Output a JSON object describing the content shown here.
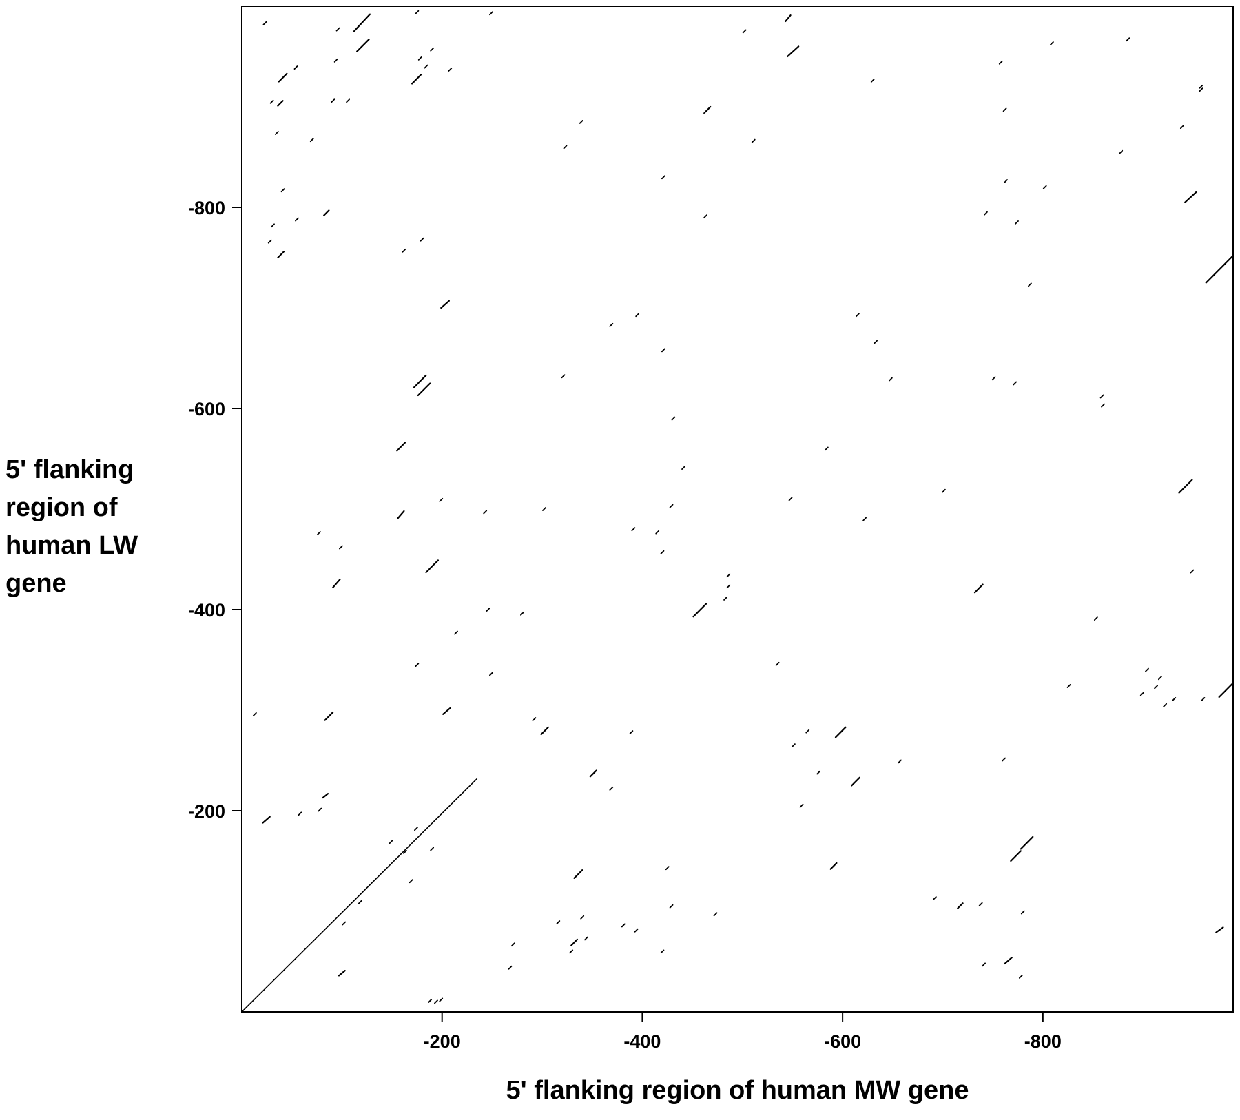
{
  "chart_data": {
    "type": "scatter",
    "title": "",
    "xlabel": "5' flanking region of human MW gene",
    "ylabel_lines": [
      "5' flanking",
      "region of",
      "human LW",
      "gene"
    ],
    "xlim": [
      0,
      -990
    ],
    "ylim": [
      0,
      -1000
    ],
    "x_ticks": [
      -200,
      -400,
      -600,
      -800
    ],
    "y_ticks": [
      -200,
      -400,
      -600,
      -800
    ],
    "x_tick_labels": [
      "-200",
      "-400",
      "-600",
      "-800"
    ],
    "y_tick_labels": [
      "-200",
      "-400",
      "-600",
      "-800"
    ],
    "grid": false,
    "main_diagonal": {
      "x": [
        0,
        -235
      ],
      "y": [
        0,
        -232
      ]
    },
    "segments": [
      {
        "x": [
          -112,
          -128
        ],
        "y": [
          -975,
          -992
        ]
      },
      {
        "x": [
          -115,
          -127
        ],
        "y": [
          -955,
          -967
        ]
      },
      {
        "x": [
          -543,
          -548
        ],
        "y": [
          -985,
          -991
        ]
      },
      {
        "x": [
          -545,
          -556
        ],
        "y": [
          -950,
          -960
        ]
      },
      {
        "x": [
          -170,
          -179
        ],
        "y": [
          -923,
          -932
        ]
      },
      {
        "x": [
          -37,
          -45
        ],
        "y": [
          -925,
          -933
        ]
      },
      {
        "x": [
          -36,
          -41
        ],
        "y": [
          -901,
          -906
        ]
      },
      {
        "x": [
          -463,
          -468
        ],
        "y": [
          -895,
          -900
        ]
      },
      {
        "x": [
          -942,
          -953
        ],
        "y": [
          -805,
          -815
        ]
      },
      {
        "x": [
          -36,
          -42
        ],
        "y": [
          -750,
          -756
        ]
      },
      {
        "x": [
          -82,
          -87
        ],
        "y": [
          -792,
          -797
        ]
      },
      {
        "x": [
          -199,
          -207
        ],
        "y": [
          -700,
          -707
        ]
      },
      {
        "x": [
          -963,
          -990
        ],
        "y": [
          -725,
          -752
        ]
      },
      {
        "x": [
          -172,
          -184
        ],
        "y": [
          -621,
          -633
        ]
      },
      {
        "x": [
          -176,
          -188
        ],
        "y": [
          -613,
          -625
        ]
      },
      {
        "x": [
          -155,
          -163
        ],
        "y": [
          -558,
          -566
        ]
      },
      {
        "x": [
          -156,
          -162
        ],
        "y": [
          -491,
          -498
        ]
      },
      {
        "x": [
          -184,
          -196
        ],
        "y": [
          -437,
          -449
        ]
      },
      {
        "x": [
          -936,
          -949
        ],
        "y": [
          -516,
          -529
        ]
      },
      {
        "x": [
          -732,
          -740
        ],
        "y": [
          -417,
          -425
        ]
      },
      {
        "x": [
          -451,
          -464
        ],
        "y": [
          -393,
          -406
        ]
      },
      {
        "x": [
          -91,
          -98
        ],
        "y": [
          -422,
          -430
        ]
      },
      {
        "x": [
          -83,
          -91
        ],
        "y": [
          -290,
          -298
        ]
      },
      {
        "x": [
          -201,
          -208
        ],
        "y": [
          -296,
          -302
        ]
      },
      {
        "x": [
          -593,
          -603
        ],
        "y": [
          -273,
          -283
        ]
      },
      {
        "x": [
          -299,
          -306
        ],
        "y": [
          -276,
          -283
        ]
      },
      {
        "x": [
          -348,
          -354
        ],
        "y": [
          -234,
          -240
        ]
      },
      {
        "x": [
          -609,
          -617
        ],
        "y": [
          -225,
          -233
        ]
      },
      {
        "x": [
          -81,
          -86
        ],
        "y": [
          -213,
          -217
        ]
      },
      {
        "x": [
          -21,
          -28
        ],
        "y": [
          -188,
          -194
        ]
      },
      {
        "x": [
          -768,
          -778
        ],
        "y": [
          -150,
          -160
        ]
      },
      {
        "x": [
          -778,
          -790
        ],
        "y": [
          -162,
          -174
        ]
      },
      {
        "x": [
          -588,
          -594
        ],
        "y": [
          -142,
          -148
        ]
      },
      {
        "x": [
          -332,
          -340
        ],
        "y": [
          -133,
          -141
        ]
      },
      {
        "x": [
          -715,
          -720
        ],
        "y": [
          -103,
          -108
        ]
      },
      {
        "x": [
          -329,
          -335
        ],
        "y": [
          -66,
          -72
        ]
      },
      {
        "x": [
          -973,
          -980
        ],
        "y": [
          -79,
          -84
        ]
      },
      {
        "x": [
          -976,
          -990
        ],
        "y": [
          -313,
          -327
        ]
      },
      {
        "x": [
          -762,
          -769
        ],
        "y": [
          -48,
          -54
        ]
      },
      {
        "x": [
          -97,
          -103
        ],
        "y": [
          -36,
          -41
        ]
      }
    ],
    "dots": [
      [
        -23,
        -983
      ],
      [
        -94,
        -946
      ],
      [
        -175,
        -994
      ],
      [
        -249,
        -993
      ],
      [
        -190,
        -957
      ],
      [
        -184,
        -940
      ],
      [
        -208,
        -937
      ],
      [
        -178,
        -948
      ],
      [
        -96,
        -977
      ],
      [
        -30,
        -905
      ],
      [
        -54,
        -939
      ],
      [
        -91,
        -906
      ],
      [
        -106,
        -906
      ],
      [
        -35,
        -874
      ],
      [
        -70,
        -867
      ],
      [
        -41,
        -817
      ],
      [
        -31,
        -782
      ],
      [
        -55,
        -788
      ],
      [
        -28,
        -766
      ],
      [
        -162,
        -757
      ],
      [
        -180,
        -768
      ],
      [
        -339,
        -885
      ],
      [
        -463,
        -895
      ],
      [
        -323,
        -860
      ],
      [
        -511,
        -866
      ],
      [
        -502,
        -975
      ],
      [
        -630,
        -926
      ],
      [
        -758,
        -944
      ],
      [
        -809,
        -963
      ],
      [
        -958,
        -920
      ],
      [
        -939,
        -880
      ],
      [
        -958,
        -917
      ],
      [
        -878,
        -855
      ],
      [
        -885,
        -967
      ],
      [
        -762,
        -897
      ],
      [
        -802,
        -820
      ],
      [
        -743,
        -794
      ],
      [
        -763,
        -826
      ],
      [
        -774,
        -785
      ],
      [
        -421,
        -830
      ],
      [
        -463,
        -791
      ],
      [
        -787,
        -723
      ],
      [
        -369,
        -683
      ],
      [
        -395,
        -693
      ],
      [
        -421,
        -658
      ],
      [
        -321,
        -632
      ],
      [
        -633,
        -666
      ],
      [
        -615,
        -693
      ],
      [
        -648,
        -629
      ],
      [
        -751,
        -630
      ],
      [
        -772,
        -625
      ],
      [
        -860,
        -603
      ],
      [
        -859,
        -612
      ],
      [
        -431,
        -590
      ],
      [
        -584,
        -560
      ],
      [
        -441,
        -541
      ],
      [
        -429,
        -503
      ],
      [
        -391,
        -480
      ],
      [
        -415,
        -477
      ],
      [
        -420,
        -457
      ],
      [
        -199,
        -509
      ],
      [
        -243,
        -497
      ],
      [
        -302,
        -500
      ],
      [
        -99,
        -462
      ],
      [
        -77,
        -476
      ],
      [
        -548,
        -510
      ],
      [
        -622,
        -490
      ],
      [
        -701,
        -518
      ],
      [
        -486,
        -434
      ],
      [
        -486,
        -423
      ],
      [
        -483,
        -411
      ],
      [
        -949,
        -438
      ],
      [
        -246,
        -400
      ],
      [
        -280,
        -396
      ],
      [
        -214,
        -377
      ],
      [
        -175,
        -345
      ],
      [
        -249,
        -336
      ],
      [
        -535,
        -346
      ],
      [
        -853,
        -391
      ],
      [
        -904,
        -340
      ],
      [
        -917,
        -332
      ],
      [
        -913,
        -323
      ],
      [
        -899,
        -316
      ],
      [
        -922,
        -305
      ],
      [
        -931,
        -311
      ],
      [
        -826,
        -324
      ],
      [
        -960,
        -311
      ],
      [
        -13,
        -296
      ],
      [
        -292,
        -291
      ],
      [
        -389,
        -278
      ],
      [
        -551,
        -265
      ],
      [
        -565,
        -279
      ],
      [
        -657,
        -249
      ],
      [
        -761,
        -251
      ],
      [
        -576,
        -238
      ],
      [
        -559,
        -205
      ],
      [
        -369,
        -222
      ],
      [
        -190,
        -162
      ],
      [
        -163,
        -159
      ],
      [
        -149,
        -169
      ],
      [
        -174,
        -182
      ],
      [
        -425,
        -143
      ],
      [
        -169,
        -130
      ],
      [
        -429,
        -105
      ],
      [
        -473,
        -97
      ],
      [
        -692,
        -113
      ],
      [
        -738,
        -107
      ],
      [
        -780,
        -99
      ],
      [
        -340,
        -94
      ],
      [
        -381,
        -86
      ],
      [
        -268,
        -44
      ],
      [
        -394,
        -81
      ],
      [
        -420,
        -60
      ],
      [
        -741,
        -47
      ],
      [
        -778,
        -35
      ],
      [
        -188,
        -11
      ],
      [
        -194,
        -10
      ],
      [
        -199,
        -12
      ],
      [
        -271,
        -67
      ],
      [
        -316,
        -89
      ],
      [
        -329,
        -60
      ],
      [
        -344,
        -73
      ],
      [
        -78,
        -201
      ],
      [
        -58,
        -197
      ],
      [
        -102,
        -88
      ],
      [
        -118,
        -109
      ]
    ]
  }
}
